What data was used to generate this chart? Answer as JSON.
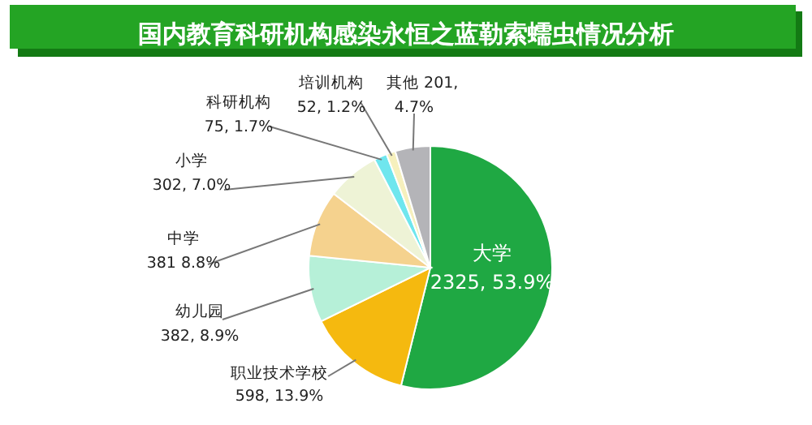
{
  "chart_data": {
    "type": "pie",
    "title": "国内教育科研机构感染永恒之蓝勒索蠕虫情况分析",
    "categories": [
      "大学",
      "职业技术学校",
      "幼儿园",
      "中学",
      "小学",
      "科研机构",
      "培训机构",
      "其他"
    ],
    "values": [
      2325,
      598,
      382,
      381,
      302,
      75,
      52,
      201
    ],
    "colors": [
      "#1fa843",
      "#f5b90f",
      "#b6f0d8",
      "#f5d28e",
      "#eef3d6",
      "#6fe6ee",
      "#f6f0bd",
      "#b4b4b8"
    ],
    "value_labels": [
      "2325, 53.9%",
      "598, 13.9%",
      "382, 8.9%",
      "381 8.8%",
      "302, 7.0%",
      "75, 1.7%",
      "52, 1.2%",
      "201, 4.7%"
    ]
  }
}
